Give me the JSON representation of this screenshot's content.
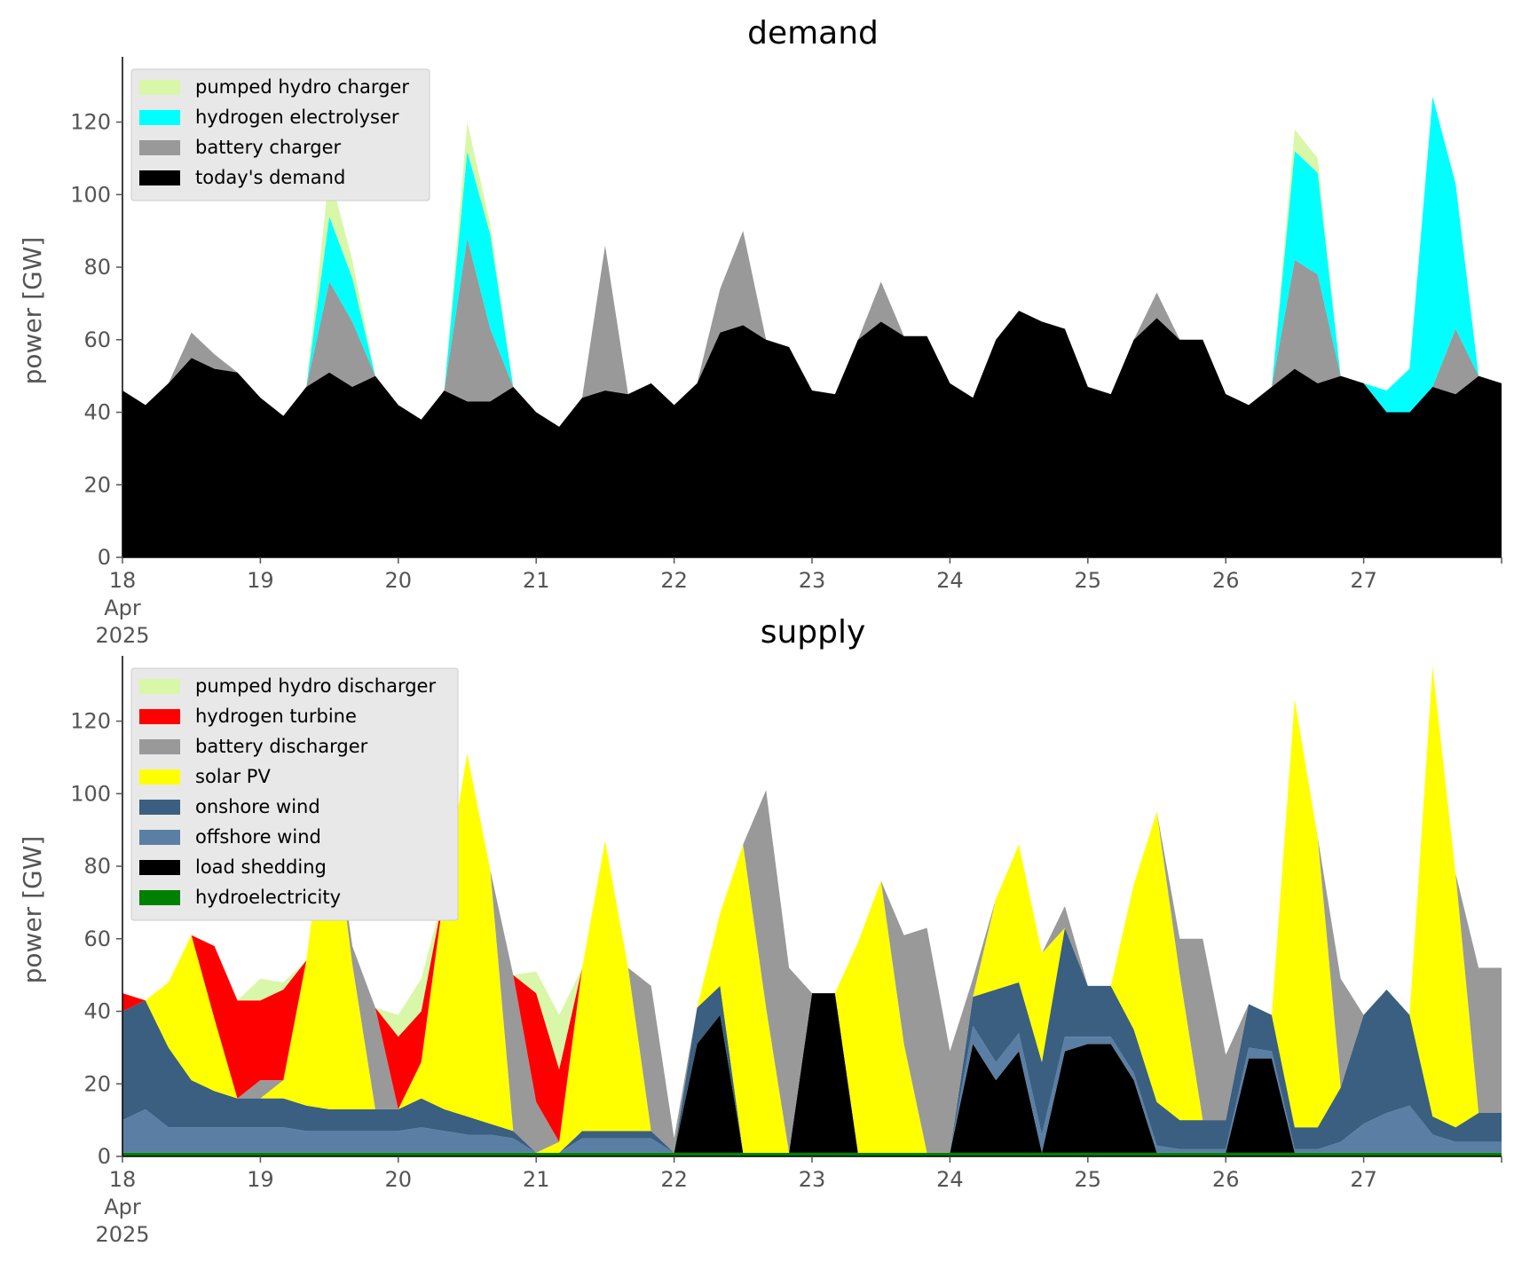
{
  "chart_data": [
    {
      "type": "area",
      "stacked": true,
      "title": "demand",
      "ylabel": "power [GW]",
      "xlabel": "",
      "ylim": [
        0,
        138
      ],
      "yticks": [
        0,
        20,
        40,
        60,
        80,
        100,
        120
      ],
      "xlim": [
        0,
        240
      ],
      "x_unit": "hours since 18 Apr 2025 00:00",
      "xtick_labels": [
        {
          "x": 0,
          "lines": [
            "18",
            "Apr",
            "2025"
          ]
        },
        {
          "x": 24,
          "lines": [
            "19"
          ]
        },
        {
          "x": 48,
          "lines": [
            "20"
          ]
        },
        {
          "x": 72,
          "lines": [
            "21"
          ]
        },
        {
          "x": 96,
          "lines": [
            "22"
          ]
        },
        {
          "x": 120,
          "lines": [
            "23"
          ]
        },
        {
          "x": 144,
          "lines": [
            "24"
          ]
        },
        {
          "x": 168,
          "lines": [
            "25"
          ]
        },
        {
          "x": 192,
          "lines": [
            "26"
          ]
        },
        {
          "x": 216,
          "lines": [
            "27"
          ]
        }
      ],
      "legend_position": "top-left",
      "x": [
        0,
        4,
        8,
        12,
        16,
        20,
        24,
        28,
        32,
        36,
        40,
        44,
        48,
        52,
        56,
        60,
        64,
        68,
        72,
        76,
        80,
        84,
        88,
        92,
        96,
        100,
        104,
        108,
        112,
        116,
        120,
        124,
        128,
        132,
        136,
        140,
        144,
        148,
        152,
        156,
        160,
        164,
        168,
        172,
        176,
        180,
        184,
        188,
        192,
        196,
        200,
        204,
        208,
        212,
        216,
        220,
        224,
        228,
        232,
        236,
        240
      ],
      "series": [
        {
          "name": "today's demand",
          "color": "#000000",
          "values": [
            46,
            42,
            48,
            55,
            52,
            51,
            44,
            39,
            47,
            51,
            47,
            50,
            42,
            38,
            46,
            43,
            43,
            47,
            40,
            36,
            44,
            46,
            45,
            48,
            42,
            48,
            62,
            64,
            60,
            58,
            46,
            45,
            60,
            65,
            61,
            61,
            48,
            44,
            60,
            68,
            65,
            63,
            47,
            45,
            60,
            66,
            60,
            60,
            45,
            42,
            47,
            52,
            48,
            50,
            48,
            40,
            40,
            47,
            45,
            50,
            48
          ]
        },
        {
          "name": "battery charger",
          "color": "#999999",
          "values": [
            0,
            0,
            0,
            7,
            4,
            0,
            0,
            0,
            0,
            25,
            18,
            0,
            0,
            0,
            0,
            45,
            20,
            0,
            0,
            0,
            0,
            40,
            0,
            0,
            0,
            0,
            12,
            26,
            0,
            0,
            0,
            0,
            0,
            11,
            0,
            0,
            0,
            0,
            0,
            0,
            0,
            0,
            0,
            0,
            0,
            7,
            0,
            0,
            0,
            0,
            0,
            30,
            30,
            0,
            0,
            0,
            0,
            0,
            18,
            0,
            0
          ]
        },
        {
          "name": "hydrogen electrolyser",
          "color": "#00ffff",
          "values": [
            0,
            0,
            0,
            0,
            0,
            0,
            0,
            0,
            0,
            18,
            12,
            0,
            0,
            0,
            0,
            24,
            26,
            0,
            0,
            0,
            0,
            0,
            0,
            0,
            0,
            0,
            0,
            0,
            0,
            0,
            0,
            0,
            0,
            0,
            0,
            0,
            0,
            0,
            0,
            0,
            0,
            0,
            0,
            0,
            0,
            0,
            0,
            0,
            0,
            0,
            0,
            30,
            28,
            0,
            0,
            6,
            12,
            80,
            40,
            0,
            0
          ]
        },
        {
          "name": "pumped hydro charger",
          "color": "#d9f7a9",
          "values": [
            0,
            0,
            0,
            0,
            0,
            0,
            0,
            0,
            0,
            12,
            5,
            0,
            0,
            0,
            0,
            8,
            3,
            0,
            0,
            0,
            0,
            0,
            0,
            0,
            0,
            0,
            0,
            0,
            0,
            0,
            0,
            0,
            0,
            0,
            0,
            0,
            0,
            0,
            0,
            0,
            0,
            0,
            0,
            0,
            0,
            0,
            0,
            0,
            0,
            0,
            0,
            6,
            4,
            0,
            0,
            0,
            0,
            0,
            0,
            0,
            0
          ]
        }
      ],
      "legend_order": [
        "pumped hydro charger",
        "hydrogen electrolyser",
        "battery charger",
        "today's demand"
      ]
    },
    {
      "type": "area",
      "stacked": true,
      "title": "supply",
      "ylabel": "power [GW]",
      "xlabel": "",
      "ylim": [
        0,
        138
      ],
      "yticks": [
        0,
        20,
        40,
        60,
        80,
        100,
        120
      ],
      "xlim": [
        0,
        240
      ],
      "x_unit": "hours since 18 Apr 2025 00:00",
      "xtick_labels": [
        {
          "x": 0,
          "lines": [
            "18",
            "Apr",
            "2025"
          ]
        },
        {
          "x": 24,
          "lines": [
            "19"
          ]
        },
        {
          "x": 48,
          "lines": [
            "20"
          ]
        },
        {
          "x": 72,
          "lines": [
            "21"
          ]
        },
        {
          "x": 96,
          "lines": [
            "22"
          ]
        },
        {
          "x": 120,
          "lines": [
            "23"
          ]
        },
        {
          "x": 144,
          "lines": [
            "24"
          ]
        },
        {
          "x": 168,
          "lines": [
            "25"
          ]
        },
        {
          "x": 192,
          "lines": [
            "26"
          ]
        },
        {
          "x": 216,
          "lines": [
            "27"
          ]
        }
      ],
      "legend_position": "top-left",
      "x": [
        0,
        4,
        8,
        12,
        16,
        20,
        24,
        28,
        32,
        36,
        40,
        44,
        48,
        52,
        56,
        60,
        64,
        68,
        72,
        76,
        80,
        84,
        88,
        92,
        96,
        100,
        104,
        108,
        112,
        116,
        120,
        124,
        128,
        132,
        136,
        140,
        144,
        148,
        152,
        156,
        160,
        164,
        168,
        172,
        176,
        180,
        184,
        188,
        192,
        196,
        200,
        204,
        208,
        212,
        216,
        220,
        224,
        228,
        232,
        236,
        240
      ],
      "series": [
        {
          "name": "hydroelectricity",
          "color": "#008000",
          "values": [
            1,
            1,
            1,
            1,
            1,
            1,
            1,
            1,
            1,
            1,
            1,
            1,
            1,
            1,
            1,
            1,
            1,
            1,
            1,
            1,
            1,
            1,
            1,
            1,
            1,
            1,
            1,
            1,
            1,
            1,
            1,
            1,
            1,
            1,
            1,
            1,
            1,
            1,
            1,
            1,
            1,
            1,
            1,
            1,
            1,
            1,
            1,
            1,
            1,
            1,
            1,
            1,
            1,
            1,
            1,
            1,
            1,
            1,
            1,
            1,
            1
          ]
        },
        {
          "name": "load shedding",
          "color": "#000000",
          "values": [
            0,
            0,
            0,
            0,
            0,
            0,
            0,
            0,
            0,
            0,
            0,
            0,
            0,
            0,
            0,
            0,
            0,
            0,
            0,
            0,
            0,
            0,
            0,
            0,
            0,
            30,
            38,
            0,
            0,
            0,
            44,
            44,
            0,
            0,
            0,
            0,
            0,
            30,
            20,
            28,
            0,
            28,
            30,
            30,
            20,
            0,
            0,
            0,
            0,
            26,
            26,
            0,
            0,
            0,
            0,
            0,
            0,
            0,
            0,
            0,
            0
          ]
        },
        {
          "name": "offshore wind",
          "color": "#5b7fa4",
          "values": [
            9,
            12,
            7,
            7,
            7,
            7,
            7,
            7,
            6,
            6,
            6,
            6,
            6,
            7,
            6,
            5,
            5,
            4,
            0,
            0,
            4,
            4,
            4,
            4,
            0,
            0,
            0,
            0,
            0,
            0,
            0,
            0,
            0,
            0,
            0,
            0,
            0,
            5,
            5,
            5,
            5,
            4,
            2,
            2,
            2,
            2,
            1,
            1,
            1,
            3,
            2,
            1,
            1,
            3,
            8,
            11,
            13,
            5,
            3,
            3,
            3
          ]
        },
        {
          "name": "onshore wind",
          "color": "#3b5f80",
          "values": [
            30,
            30,
            22,
            13,
            10,
            8,
            8,
            8,
            7,
            6,
            6,
            6,
            6,
            8,
            6,
            5,
            3,
            2,
            0,
            0,
            2,
            2,
            2,
            2,
            0,
            10,
            8,
            0,
            0,
            0,
            0,
            0,
            0,
            0,
            0,
            0,
            0,
            8,
            20,
            14,
            20,
            30,
            14,
            14,
            12,
            12,
            8,
            8,
            8,
            12,
            10,
            6,
            6,
            15,
            30,
            34,
            25,
            5,
            4,
            8,
            8
          ]
        },
        {
          "name": "solar PV",
          "color": "#ffff00",
          "values": [
            0,
            0,
            18,
            40,
            20,
            0,
            0,
            5,
            40,
            90,
            40,
            0,
            0,
            10,
            60,
            100,
            70,
            0,
            0,
            3,
            45,
            80,
            45,
            0,
            0,
            0,
            20,
            85,
            40,
            0,
            0,
            0,
            58,
            75,
            30,
            0,
            0,
            0,
            25,
            38,
            30,
            0,
            0,
            0,
            40,
            80,
            40,
            0,
            0,
            0,
            0,
            118,
            80,
            0,
            0,
            0,
            0,
            124,
            70,
            0,
            0
          ]
        },
        {
          "name": "battery discharger",
          "color": "#999999",
          "values": [
            0,
            0,
            0,
            0,
            0,
            0,
            5,
            0,
            0,
            0,
            5,
            28,
            0,
            0,
            0,
            0,
            0,
            43,
            14,
            0,
            0,
            0,
            0,
            40,
            4,
            0,
            0,
            0,
            60,
            51,
            0,
            0,
            0,
            0,
            30,
            62,
            28,
            5,
            0,
            0,
            0,
            6,
            0,
            0,
            0,
            0,
            10,
            50,
            18,
            0,
            0,
            0,
            0,
            30,
            0,
            0,
            0,
            0,
            0,
            40,
            40
          ]
        },
        {
          "name": "hydrogen turbine",
          "color": "#ff0000",
          "values": [
            5,
            0,
            0,
            0,
            20,
            27,
            22,
            25,
            0,
            0,
            0,
            0,
            20,
            14,
            0,
            0,
            0,
            0,
            30,
            20,
            0,
            0,
            0,
            0,
            0,
            0,
            0,
            0,
            0,
            0,
            0,
            0,
            0,
            0,
            0,
            0,
            0,
            0,
            0,
            0,
            0,
            0,
            0,
            0,
            0,
            0,
            0,
            0,
            0,
            0,
            0,
            0,
            0,
            0,
            0,
            0,
            0,
            0,
            0,
            0,
            0
          ]
        },
        {
          "name": "pumped hydro discharger",
          "color": "#d9f7a9",
          "values": [
            0,
            0,
            0,
            0,
            0,
            0,
            6,
            2,
            0,
            0,
            0,
            0,
            6,
            9,
            0,
            0,
            0,
            0,
            6,
            15,
            0,
            0,
            0,
            0,
            0,
            0,
            0,
            0,
            0,
            0,
            0,
            0,
            0,
            0,
            0,
            0,
            0,
            0,
            0,
            0,
            0,
            0,
            0,
            0,
            0,
            0,
            0,
            0,
            0,
            0,
            0,
            0,
            0,
            0,
            0,
            0,
            0,
            0,
            0,
            0,
            0
          ]
        }
      ],
      "legend_order": [
        "pumped hydro discharger",
        "hydrogen turbine",
        "battery discharger",
        "solar PV",
        "onshore wind",
        "offshore wind",
        "load shedding",
        "hydroelectricity"
      ]
    }
  ]
}
